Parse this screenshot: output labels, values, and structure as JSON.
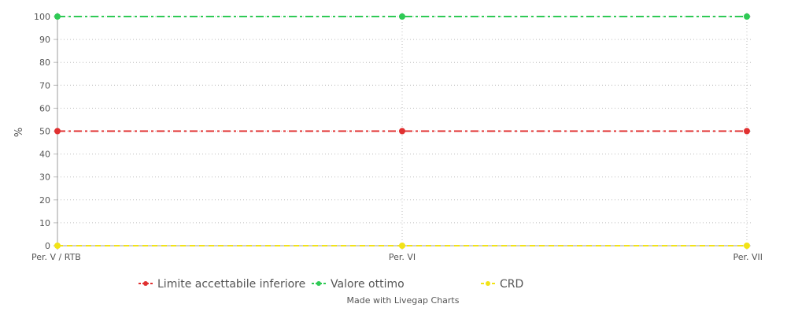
{
  "chart_data": {
    "type": "line",
    "categories": [
      "Per. V / RTB",
      "Per. VI",
      "Per. VII"
    ],
    "ylabel": "%",
    "xlabel": "",
    "ylim": [
      0,
      100
    ],
    "yticks": [
      0,
      10,
      20,
      30,
      40,
      50,
      60,
      70,
      80,
      90,
      100
    ],
    "grid": true,
    "legend_position": "bottom",
    "series": [
      {
        "name": "Limite accettabile inferiore",
        "values": [
          50,
          50,
          50
        ],
        "color": "#e03131",
        "dash": "dash-dot"
      },
      {
        "name": "Valore ottimo",
        "values": [
          100,
          100,
          100
        ],
        "color": "#2fca55",
        "dash": "dash-dot"
      },
      {
        "name": "CRD",
        "values": [
          0,
          0,
          0
        ],
        "color": "#f2e317",
        "dash": "dashed"
      }
    ]
  },
  "footer": {
    "credit": "Made with Livegap Charts"
  }
}
